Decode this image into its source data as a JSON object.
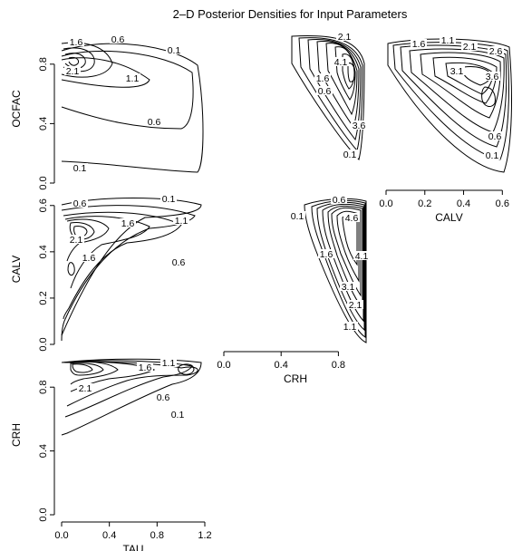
{
  "title": "2–D Posterior Densities for Input Parameters",
  "chart_data": {
    "type": "contour",
    "title": "2–D Posterior Densities for Input Parameters",
    "panels": [
      {
        "id": "ocfac-tau",
        "xvar": "TAU",
        "yvar": "OCFAC",
        "xlim": [
          0.0,
          1.2
        ],
        "ylim": [
          0.0,
          1.0
        ],
        "x_ticks": [],
        "y_ticks": [
          "0.0",
          "0.4",
          "0.8"
        ],
        "xlabel": "",
        "ylabel": "OCFAC",
        "levels": [
          0.1,
          0.6,
          1.1,
          1.6,
          2.1
        ],
        "contour_labels": [
          "1.6",
          "0.6",
          "0.1",
          "2.1",
          "1.1",
          "0.6",
          "0.1"
        ]
      },
      {
        "id": "ocfac-crh",
        "xvar": "CRH",
        "yvar": "OCFAC",
        "xlim": [
          0.0,
          1.0
        ],
        "ylim": [
          0.0,
          1.0
        ],
        "x_ticks": [],
        "y_ticks": [],
        "xlabel": "",
        "ylabel": "",
        "levels": [
          0.1,
          0.6,
          1.1,
          1.6,
          2.1,
          2.6,
          3.1,
          3.6,
          4.1
        ],
        "contour_labels": [
          "2.1",
          "4.1",
          "1.6",
          "0.6",
          "3.6",
          "0.1"
        ]
      },
      {
        "id": "ocfac-calv",
        "xvar": "CALV",
        "yvar": "OCFAC",
        "xlim": [
          0.0,
          0.65
        ],
        "ylim": [
          0.0,
          1.0
        ],
        "x_ticks": [
          "0.0",
          "0.2",
          "0.4",
          "0.6"
        ],
        "y_ticks": [],
        "xlabel": "CALV",
        "ylabel": "",
        "levels": [
          0.1,
          0.6,
          1.1,
          1.6,
          2.1,
          2.6,
          3.1,
          3.6
        ],
        "contour_labels": [
          "1.6",
          "1.1",
          "2.1",
          "2.6",
          "3.1",
          "3.6",
          "0.6",
          "0.1"
        ]
      },
      {
        "id": "calv-tau",
        "xvar": "TAU",
        "yvar": "CALV",
        "xlim": [
          0.0,
          1.2
        ],
        "ylim": [
          0.0,
          0.65
        ],
        "x_ticks": [],
        "y_ticks": [
          "0.0",
          "0.2",
          "0.4",
          "0.6"
        ],
        "xlabel": "",
        "ylabel": "CALV",
        "levels": [
          0.1,
          0.6,
          1.1,
          1.6,
          2.1
        ],
        "contour_labels": [
          "0.6",
          "0.1",
          "2.1",
          "1.6",
          "1.1",
          "1.6",
          "0.6"
        ]
      },
      {
        "id": "calv-crh",
        "xvar": "CRH",
        "yvar": "CALV",
        "xlim": [
          0.0,
          1.0
        ],
        "ylim": [
          0.0,
          0.65
        ],
        "x_ticks": [
          "0.0",
          "0.4",
          "0.8"
        ],
        "y_ticks": [],
        "xlabel": "CRH",
        "ylabel": "",
        "levels": [
          0.1,
          0.6,
          1.1,
          1.6,
          2.1,
          2.6,
          3.1,
          3.6,
          4.1,
          4.6
        ],
        "contour_labels": [
          "0.1",
          "0.6",
          "4.6",
          "1.6",
          "4.1",
          "3.1",
          "2.1",
          "1.1"
        ]
      },
      {
        "id": "crh-tau",
        "xvar": "TAU",
        "yvar": "CRH",
        "xlim": [
          0.0,
          1.2
        ],
        "ylim": [
          0.0,
          1.0
        ],
        "x_ticks": [
          "0.0",
          "0.4",
          "0.8",
          "1.2"
        ],
        "y_ticks": [
          "0.0",
          "0.4",
          "0.8"
        ],
        "xlabel": "TAU",
        "ylabel": "CRH",
        "levels": [
          0.1,
          0.6,
          1.1,
          1.6,
          2.1
        ],
        "contour_labels": [
          "1.6",
          "1.1",
          "2.1",
          "0.6",
          "0.1"
        ]
      }
    ]
  }
}
